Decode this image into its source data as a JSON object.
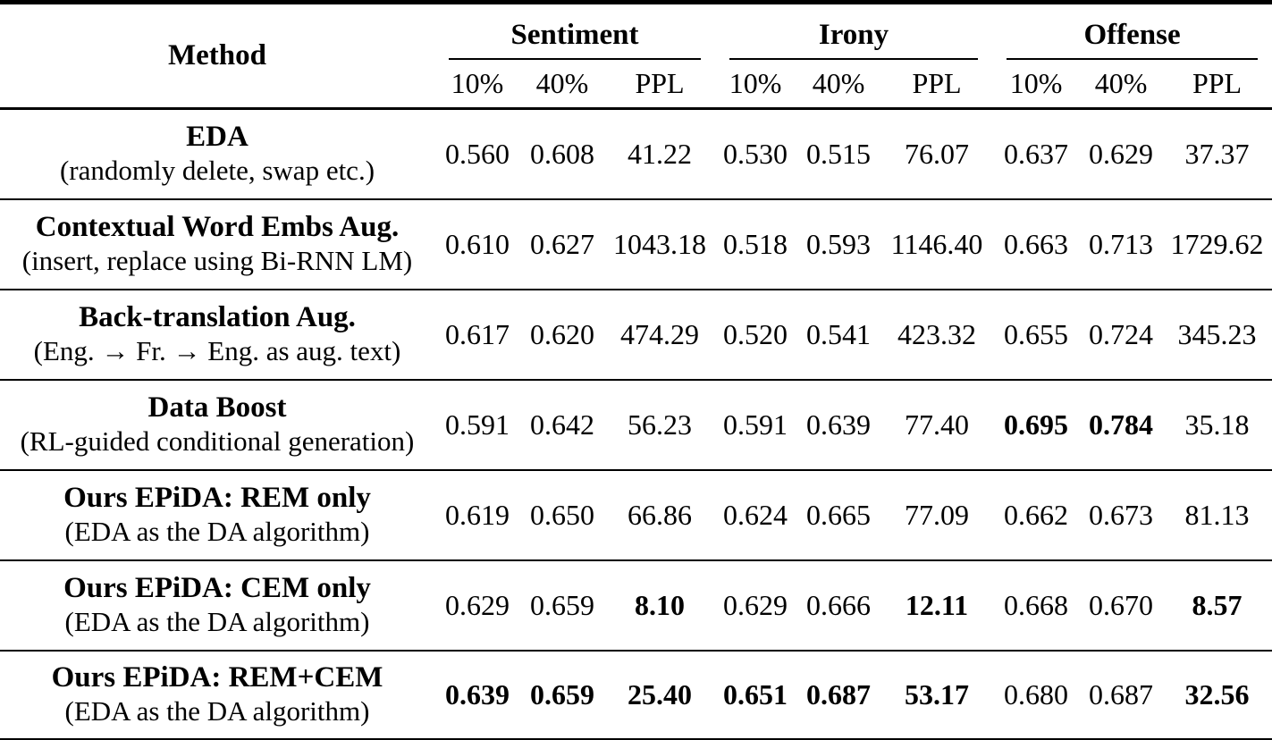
{
  "table": {
    "method_header": "Method",
    "groups": [
      {
        "label": "Sentiment"
      },
      {
        "label": "Irony"
      },
      {
        "label": "Offense"
      }
    ],
    "subcols": [
      "10%",
      "40%",
      "PPL",
      "10%",
      "40%",
      "PPL",
      "10%",
      "40%",
      "PPL"
    ],
    "rows": [
      {
        "name": "EDA",
        "desc": "(randomly delete, swap etc.)",
        "values": [
          "0.560",
          "0.608",
          "41.22",
          "0.530",
          "0.515",
          "76.07",
          "0.637",
          "0.629",
          "37.37"
        ],
        "bold": [
          false,
          false,
          false,
          false,
          false,
          false,
          false,
          false,
          false
        ]
      },
      {
        "name": "Contextual Word Embs Aug.",
        "desc": "(insert, replace using Bi-RNN LM)",
        "values": [
          "0.610",
          "0.627",
          "1043.18",
          "0.518",
          "0.593",
          "1146.40",
          "0.663",
          "0.713",
          "1729.62"
        ],
        "bold": [
          false,
          false,
          false,
          false,
          false,
          false,
          false,
          false,
          false
        ]
      },
      {
        "name": "Back-translation Aug.",
        "desc": "(Eng. → Fr. → Eng. as aug. text)",
        "values": [
          "0.617",
          "0.620",
          "474.29",
          "0.520",
          "0.541",
          "423.32",
          "0.655",
          "0.724",
          "345.23"
        ],
        "bold": [
          false,
          false,
          false,
          false,
          false,
          false,
          false,
          false,
          false
        ]
      },
      {
        "name": "Data Boost",
        "desc": "(RL-guided conditional generation)",
        "values": [
          "0.591",
          "0.642",
          "56.23",
          "0.591",
          "0.639",
          "77.40",
          "0.695",
          "0.784",
          "35.18"
        ],
        "bold": [
          false,
          false,
          false,
          false,
          false,
          false,
          true,
          true,
          false
        ]
      },
      {
        "name": "Ours EPiDA: REM only",
        "desc": "(EDA as the DA algorithm)",
        "values": [
          "0.619",
          "0.650",
          "66.86",
          "0.624",
          "0.665",
          "77.09",
          "0.662",
          "0.673",
          "81.13"
        ],
        "bold": [
          false,
          false,
          false,
          false,
          false,
          false,
          false,
          false,
          false
        ]
      },
      {
        "name": "Ours EPiDA: CEM only",
        "desc": "(EDA as the DA algorithm)",
        "values": [
          "0.629",
          "0.659",
          "8.10",
          "0.629",
          "0.666",
          "12.11",
          "0.668",
          "0.670",
          "8.57"
        ],
        "bold": [
          false,
          false,
          true,
          false,
          false,
          true,
          false,
          false,
          true
        ]
      },
      {
        "name": "Ours EPiDA: REM+CEM",
        "desc": "(EDA as the DA algorithm)",
        "values": [
          "0.639",
          "0.659",
          "25.40",
          "0.651",
          "0.687",
          "53.17",
          "0.680",
          "0.687",
          "32.56"
        ],
        "bold": [
          true,
          true,
          true,
          true,
          true,
          true,
          false,
          false,
          true
        ]
      }
    ]
  }
}
